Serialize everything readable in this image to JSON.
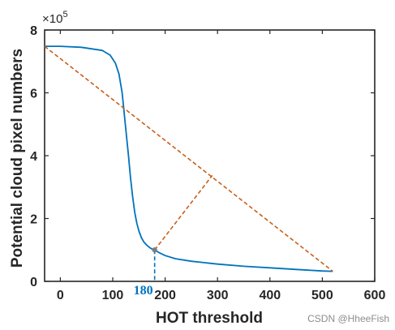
{
  "chart_data": {
    "type": "line",
    "title": "",
    "xlabel": "HOT threshold",
    "ylabel": "Potential cloud pixel numbers",
    "y_exponent_label": "×10",
    "y_exponent_power": "5",
    "xlim": [
      -30,
      600
    ],
    "ylim": [
      0,
      8
    ],
    "x_ticks": [
      0,
      100,
      200,
      300,
      400,
      500,
      600
    ],
    "y_ticks": [
      0,
      2,
      4,
      6,
      8
    ],
    "x_tick_labels": [
      "0",
      "100",
      "200",
      "300",
      "400",
      "500",
      "600"
    ],
    "y_tick_labels": [
      "0",
      "2",
      "4",
      "6",
      "8"
    ],
    "grid": false,
    "series": [
      {
        "color": "#0072bd",
        "style": "solid",
        "x": [
          -30,
          0,
          40,
          80,
          95,
          105,
          112,
          118,
          124,
          130,
          134,
          138,
          142,
          146,
          150,
          155,
          160,
          165,
          170,
          175,
          180,
          190,
          200,
          220,
          250,
          300,
          350,
          400,
          450,
          500,
          520
        ],
        "y": [
          7.48,
          7.48,
          7.45,
          7.35,
          7.2,
          6.95,
          6.6,
          6.0,
          5.0,
          4.0,
          3.3,
          2.7,
          2.2,
          1.85,
          1.6,
          1.38,
          1.24,
          1.15,
          1.08,
          1.03,
          1.0,
          0.9,
          0.82,
          0.72,
          0.64,
          0.55,
          0.48,
          0.43,
          0.38,
          0.33,
          0.32
        ]
      }
    ],
    "reference_lines": [
      {
        "name": "chord",
        "color": "#c8601b",
        "style": "dashed",
        "x": [
          -30,
          520
        ],
        "y": [
          7.48,
          0.32
        ]
      },
      {
        "name": "perpendicular",
        "color": "#c8601b",
        "style": "dashed",
        "x": [
          180,
          290
        ],
        "y": [
          1.0,
          3.37
        ]
      },
      {
        "name": "threshold-drop",
        "color": "#0072bd",
        "style": "dashed",
        "x": [
          180,
          180
        ],
        "y": [
          1.0,
          0
        ]
      }
    ],
    "marker": {
      "x": 180,
      "y": 1.0,
      "color": "#7f7f7f"
    },
    "annotations": [
      {
        "text": "180",
        "x": 180,
        "y": 0,
        "color": "#0072bd"
      }
    ]
  },
  "watermark": "CSDN @HheeFish"
}
